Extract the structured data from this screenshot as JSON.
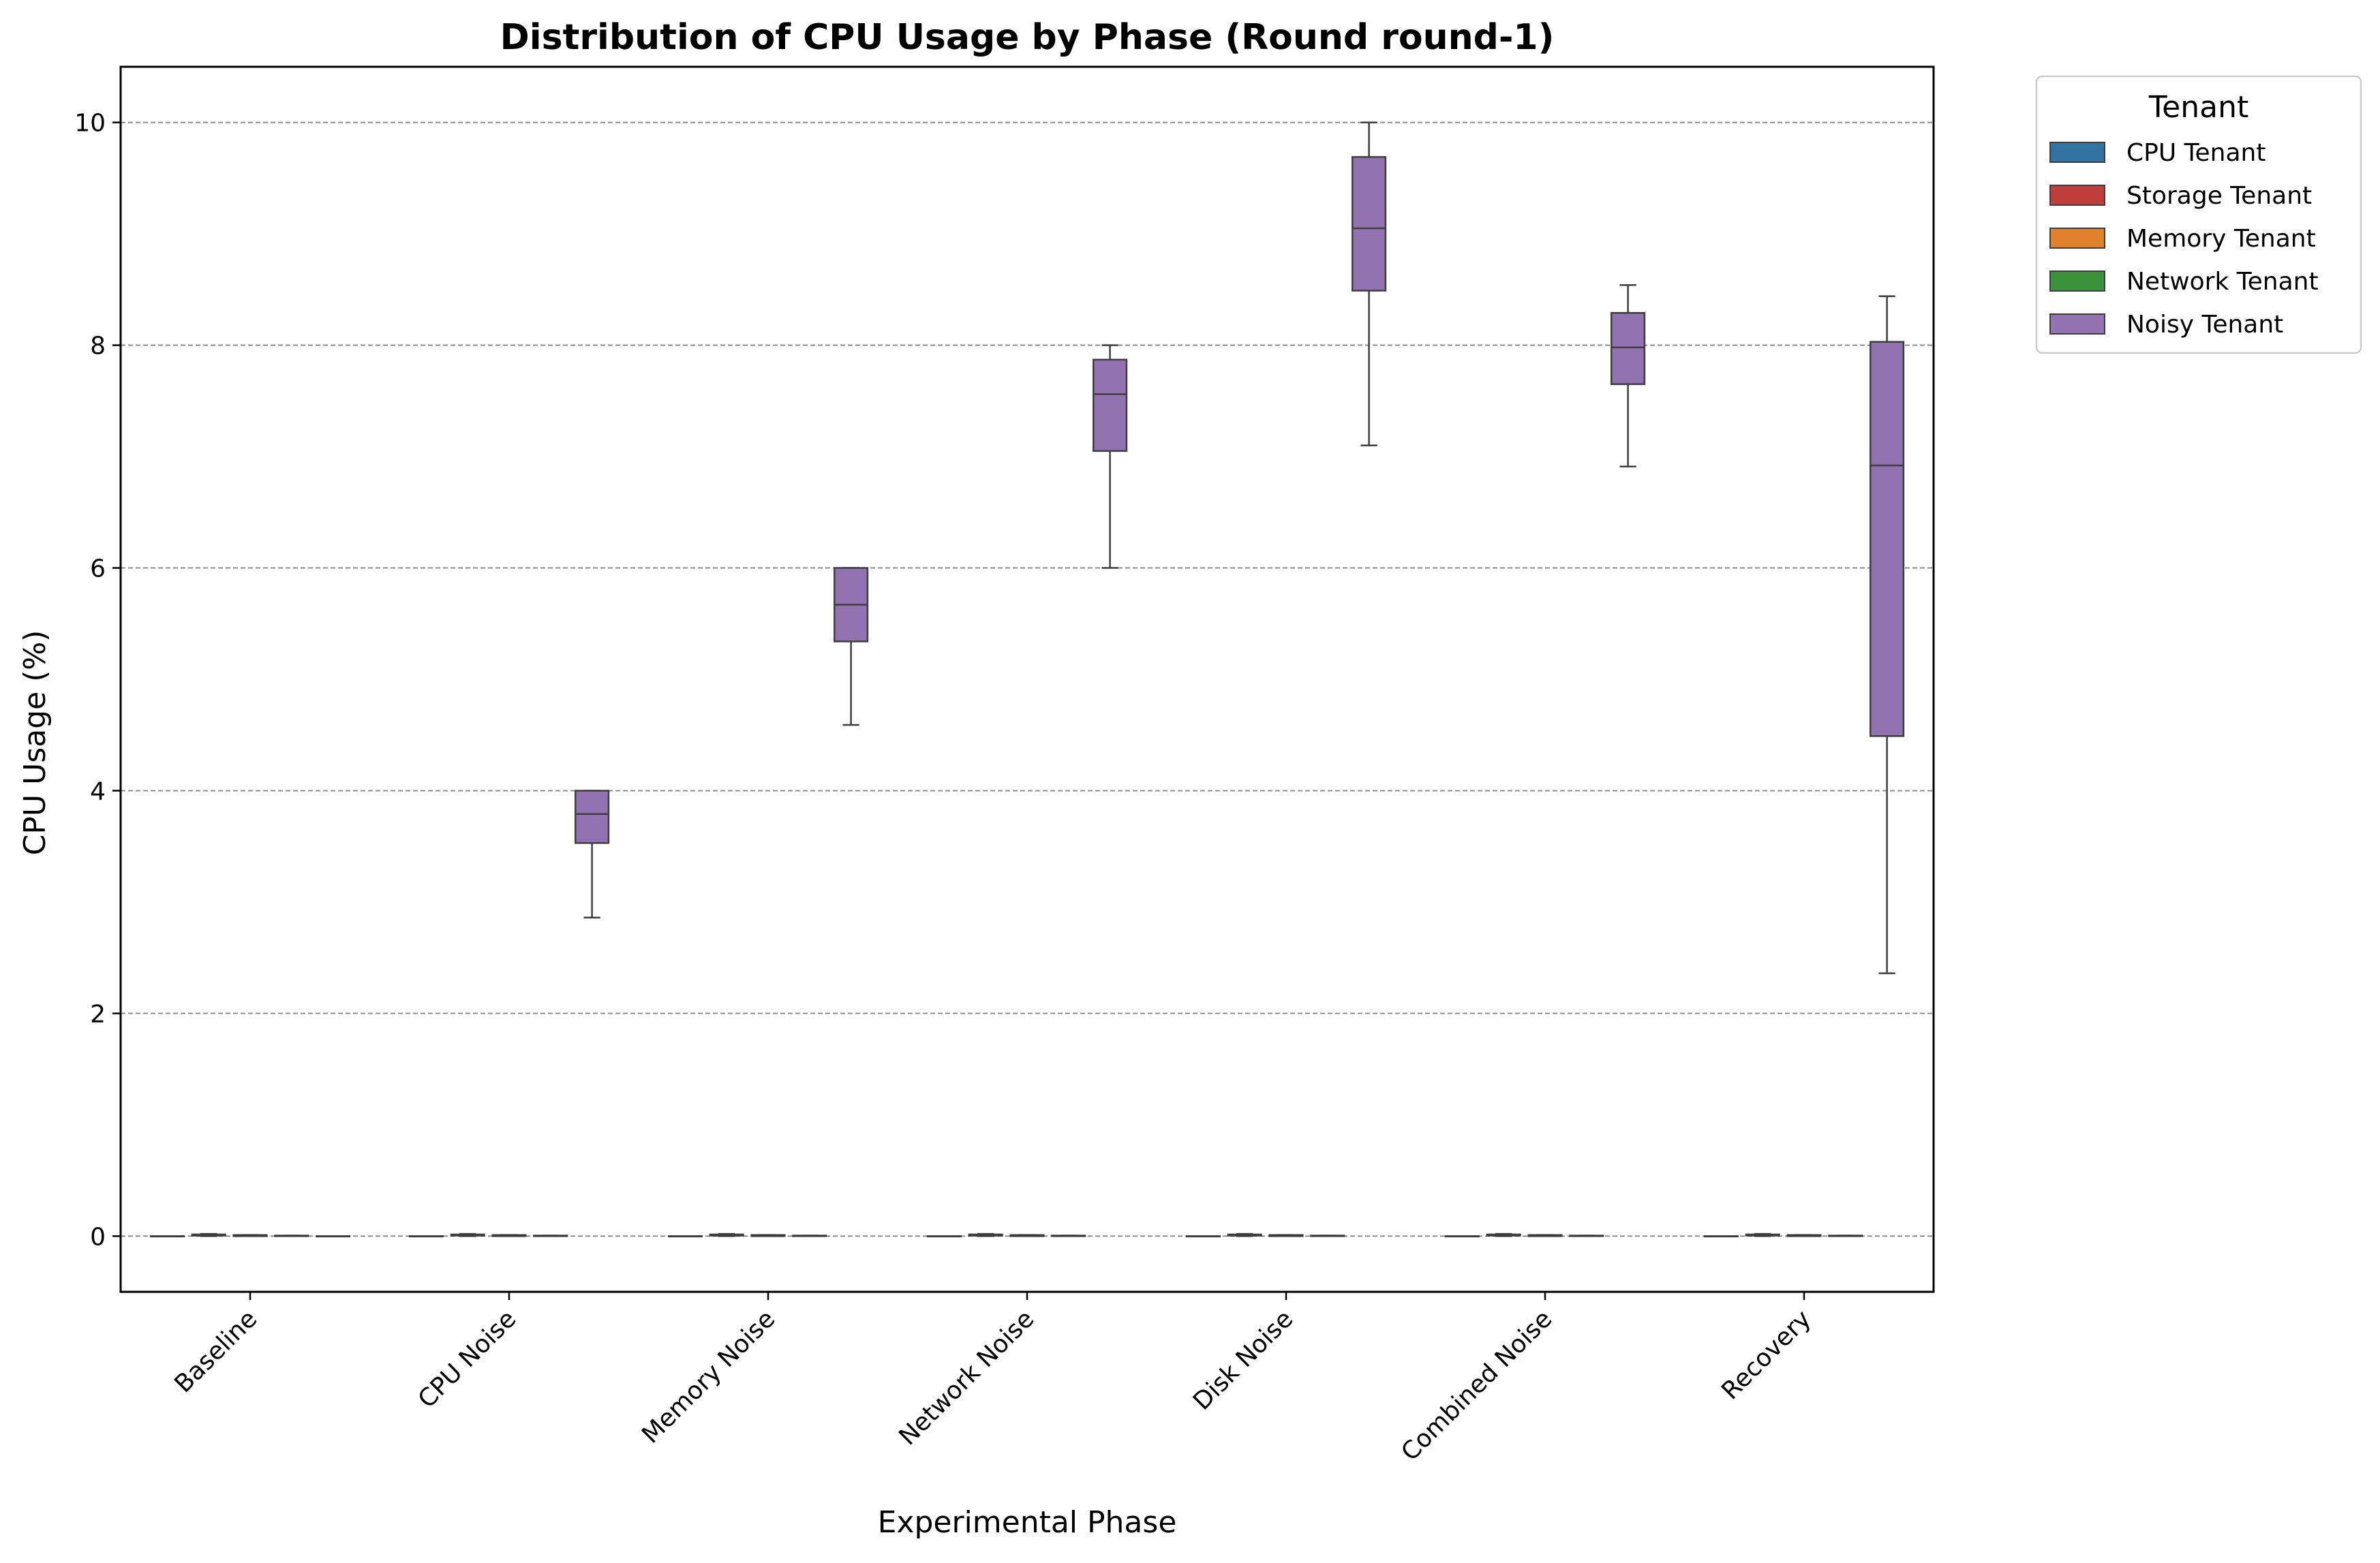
{
  "chart_data": {
    "type": "box",
    "title": "Distribution of CPU Usage by Phase (Round round-1)",
    "xlabel": "Experimental Phase",
    "ylabel": "CPU Usage (%)",
    "ylim": [
      -0.5,
      10.5
    ],
    "yticks": [
      "0",
      "2",
      "4",
      "6",
      "8",
      "10"
    ],
    "grid": "y-dashed",
    "categories": [
      "Baseline",
      "CPU Noise",
      "Memory Noise",
      "Network Noise",
      "Disk Noise",
      "Combined Noise",
      "Recovery"
    ],
    "legend": {
      "title": "Tenant",
      "placement": "outside-top-right",
      "entries": [
        "CPU Tenant",
        "Storage Tenant",
        "Memory Tenant",
        "Network Tenant",
        "Noisy Tenant"
      ]
    },
    "colors": {
      "CPU Tenant": "#3274a1",
      "Storage Tenant": "#c03d3e",
      "Memory Tenant": "#e1812c",
      "Network Tenant": "#3a923a",
      "Noisy Tenant": "#9372b2"
    },
    "series": [
      {
        "name": "CPU Tenant",
        "boxes": [
          {
            "min": 0,
            "q1": 0,
            "median": 0,
            "q3": 0,
            "max": 0
          },
          {
            "min": 0,
            "q1": 0,
            "median": 0,
            "q3": 0,
            "max": 0
          },
          {
            "min": 0,
            "q1": 0,
            "median": 0,
            "q3": 0,
            "max": 0
          },
          {
            "min": 0,
            "q1": 0,
            "median": 0,
            "q3": 0,
            "max": 0
          },
          {
            "min": 0,
            "q1": 0,
            "median": 0,
            "q3": 0,
            "max": 0
          },
          {
            "min": 0,
            "q1": 0,
            "median": 0,
            "q3": 0,
            "max": 0
          },
          {
            "min": 0,
            "q1": 0,
            "median": 0,
            "q3": 0,
            "max": 0
          }
        ]
      },
      {
        "name": "Storage Tenant",
        "boxes": [
          {
            "min": 0,
            "q1": 0.005,
            "median": 0.01,
            "q3": 0.015,
            "max": 0.02
          },
          {
            "min": 0,
            "q1": 0.005,
            "median": 0.01,
            "q3": 0.015,
            "max": 0.02
          },
          {
            "min": 0,
            "q1": 0.005,
            "median": 0.01,
            "q3": 0.015,
            "max": 0.02
          },
          {
            "min": 0,
            "q1": 0.005,
            "median": 0.01,
            "q3": 0.015,
            "max": 0.02
          },
          {
            "min": 0,
            "q1": 0.005,
            "median": 0.01,
            "q3": 0.015,
            "max": 0.02
          },
          {
            "min": 0,
            "q1": 0.005,
            "median": 0.01,
            "q3": 0.015,
            "max": 0.02
          },
          {
            "min": 0,
            "q1": 0.005,
            "median": 0.01,
            "q3": 0.015,
            "max": 0.02
          }
        ]
      },
      {
        "name": "Memory Tenant",
        "boxes": [
          {
            "min": 0,
            "q1": 0,
            "median": 0.005,
            "q3": 0.01,
            "max": 0.01
          },
          {
            "min": 0,
            "q1": 0,
            "median": 0.005,
            "q3": 0.01,
            "max": 0.01
          },
          {
            "min": 0,
            "q1": 0,
            "median": 0.005,
            "q3": 0.01,
            "max": 0.01
          },
          {
            "min": 0,
            "q1": 0,
            "median": 0.005,
            "q3": 0.01,
            "max": 0.01
          },
          {
            "min": 0,
            "q1": 0,
            "median": 0.005,
            "q3": 0.01,
            "max": 0.01
          },
          {
            "min": 0,
            "q1": 0,
            "median": 0.005,
            "q3": 0.01,
            "max": 0.01
          },
          {
            "min": 0,
            "q1": 0,
            "median": 0.005,
            "q3": 0.01,
            "max": 0.01
          }
        ]
      },
      {
        "name": "Network Tenant",
        "boxes": [
          {
            "min": 0,
            "q1": 0,
            "median": 0,
            "q3": 0.005,
            "max": 0.005
          },
          {
            "min": 0,
            "q1": 0,
            "median": 0,
            "q3": 0.005,
            "max": 0.005
          },
          {
            "min": 0,
            "q1": 0,
            "median": 0,
            "q3": 0.005,
            "max": 0.005
          },
          {
            "min": 0,
            "q1": 0,
            "median": 0,
            "q3": 0.005,
            "max": 0.005
          },
          {
            "min": 0,
            "q1": 0,
            "median": 0,
            "q3": 0.005,
            "max": 0.005
          },
          {
            "min": 0,
            "q1": 0,
            "median": 0,
            "q3": 0.005,
            "max": 0.005
          },
          {
            "min": 0,
            "q1": 0,
            "median": 0,
            "q3": 0.005,
            "max": 0.005
          }
        ]
      },
      {
        "name": "Noisy Tenant",
        "boxes": [
          {
            "min": 0,
            "q1": 0,
            "median": 0,
            "q3": 0,
            "max": 0
          },
          {
            "min": 2.86,
            "q1": 3.53,
            "median": 3.79,
            "q3": 4.0,
            "max": 4.0
          },
          {
            "min": 4.59,
            "q1": 5.34,
            "median": 5.67,
            "q3": 6.0,
            "max": 6.0
          },
          {
            "min": 6.0,
            "q1": 7.05,
            "median": 7.56,
            "q3": 7.87,
            "max": 8.0
          },
          {
            "min": 7.1,
            "q1": 8.49,
            "median": 9.05,
            "q3": 9.69,
            "max": 10.0
          },
          {
            "min": 6.91,
            "q1": 7.65,
            "median": 7.98,
            "q3": 8.29,
            "max": 8.54
          },
          {
            "min": 2.36,
            "q1": 4.49,
            "median": 6.92,
            "q3": 8.03,
            "max": 8.44
          }
        ]
      }
    ]
  }
}
